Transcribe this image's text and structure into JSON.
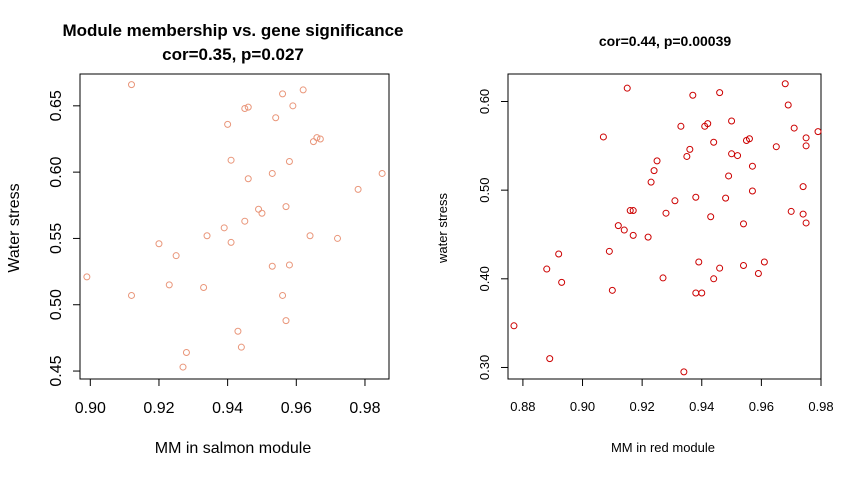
{
  "chart_data": [
    {
      "type": "scatter",
      "title": "Module membership vs. gene significance",
      "subtitle": "cor=0.35, p=0.027",
      "xlabel": "MM in salmon module",
      "ylabel": "Water stress",
      "xticks": [
        "0.90",
        "0.92",
        "0.94",
        "0.96",
        "0.98"
      ],
      "yticks": [
        "0.45",
        "0.50",
        "0.55",
        "0.60",
        "0.65"
      ],
      "xlim": [
        0.897,
        0.987
      ],
      "ylim": [
        0.444,
        0.674
      ],
      "color": "#E9967A",
      "points": [
        [
          0.912,
          0.666
        ],
        [
          0.899,
          0.521
        ],
        [
          0.912,
          0.507
        ],
        [
          0.92,
          0.546
        ],
        [
          0.923,
          0.515
        ],
        [
          0.925,
          0.537
        ],
        [
          0.927,
          0.453
        ],
        [
          0.928,
          0.464
        ],
        [
          0.933,
          0.513
        ],
        [
          0.934,
          0.552
        ],
        [
          0.939,
          0.558
        ],
        [
          0.94,
          0.636
        ],
        [
          0.941,
          0.609
        ],
        [
          0.941,
          0.547
        ],
        [
          0.943,
          0.48
        ],
        [
          0.944,
          0.468
        ],
        [
          0.945,
          0.648
        ],
        [
          0.946,
          0.649
        ],
        [
          0.945,
          0.563
        ],
        [
          0.946,
          0.595
        ],
        [
          0.949,
          0.572
        ],
        [
          0.95,
          0.569
        ],
        [
          0.953,
          0.599
        ],
        [
          0.954,
          0.641
        ],
        [
          0.953,
          0.529
        ],
        [
          0.956,
          0.659
        ],
        [
          0.957,
          0.574
        ],
        [
          0.956,
          0.507
        ],
        [
          0.957,
          0.488
        ],
        [
          0.958,
          0.53
        ],
        [
          0.958,
          0.608
        ],
        [
          0.959,
          0.65
        ],
        [
          0.962,
          0.662
        ],
        [
          0.964,
          0.552
        ],
        [
          0.965,
          0.623
        ],
        [
          0.966,
          0.626
        ],
        [
          0.967,
          0.625
        ],
        [
          0.972,
          0.55
        ],
        [
          0.978,
          0.587
        ],
        [
          0.985,
          0.599
        ]
      ]
    },
    {
      "type": "scatter",
      "title": "cor=0.44, p=0.00039",
      "xlabel": "MM in red module",
      "ylabel": "water stress",
      "xticks": [
        "0.88",
        "0.90",
        "0.92",
        "0.94",
        "0.96",
        "0.98"
      ],
      "yticks": [
        "0.30",
        "0.40",
        "0.50",
        "0.60"
      ],
      "xlim": [
        0.875,
        0.98
      ],
      "ylim": [
        0.287,
        0.631
      ],
      "color": "#CC0000",
      "points": [
        [
          0.877,
          0.347
        ],
        [
          0.888,
          0.411
        ],
        [
          0.889,
          0.31
        ],
        [
          0.892,
          0.428
        ],
        [
          0.893,
          0.396
        ],
        [
          0.907,
          0.56
        ],
        [
          0.909,
          0.431
        ],
        [
          0.91,
          0.387
        ],
        [
          0.912,
          0.46
        ],
        [
          0.914,
          0.455
        ],
        [
          0.915,
          0.615
        ],
        [
          0.916,
          0.477
        ],
        [
          0.917,
          0.477
        ],
        [
          0.917,
          0.449
        ],
        [
          0.922,
          0.447
        ],
        [
          0.923,
          0.509
        ],
        [
          0.924,
          0.522
        ],
        [
          0.925,
          0.533
        ],
        [
          0.927,
          0.401
        ],
        [
          0.928,
          0.474
        ],
        [
          0.931,
          0.488
        ],
        [
          0.933,
          0.572
        ],
        [
          0.934,
          0.295
        ],
        [
          0.935,
          0.538
        ],
        [
          0.936,
          0.546
        ],
        [
          0.937,
          0.607
        ],
        [
          0.938,
          0.384
        ],
        [
          0.938,
          0.492
        ],
        [
          0.939,
          0.419
        ],
        [
          0.94,
          0.384
        ],
        [
          0.941,
          0.572
        ],
        [
          0.942,
          0.575
        ],
        [
          0.943,
          0.47
        ],
        [
          0.944,
          0.4
        ],
        [
          0.944,
          0.554
        ],
        [
          0.946,
          0.61
        ],
        [
          0.946,
          0.412
        ],
        [
          0.948,
          0.491
        ],
        [
          0.949,
          0.516
        ],
        [
          0.95,
          0.578
        ],
        [
          0.95,
          0.541
        ],
        [
          0.952,
          0.539
        ],
        [
          0.954,
          0.462
        ],
        [
          0.954,
          0.415
        ],
        [
          0.955,
          0.556
        ],
        [
          0.956,
          0.558
        ],
        [
          0.957,
          0.527
        ],
        [
          0.957,
          0.499
        ],
        [
          0.959,
          0.406
        ],
        [
          0.961,
          0.419
        ],
        [
          0.965,
          0.549
        ],
        [
          0.968,
          0.62
        ],
        [
          0.969,
          0.596
        ],
        [
          0.97,
          0.476
        ],
        [
          0.971,
          0.57
        ],
        [
          0.974,
          0.504
        ],
        [
          0.974,
          0.473
        ],
        [
          0.975,
          0.55
        ],
        [
          0.975,
          0.559
        ],
        [
          0.975,
          0.463
        ],
        [
          0.979,
          0.566
        ]
      ]
    }
  ]
}
